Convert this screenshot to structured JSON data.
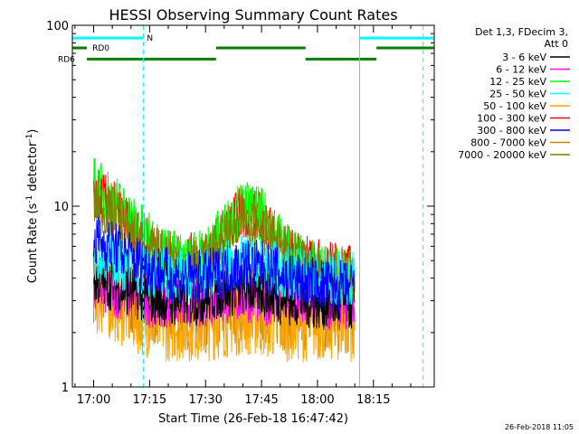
{
  "chart_data": {
    "type": "line",
    "title": "HESSI Observing Summary Count Rates",
    "xlabel": "Start Time (26-Feb-18 16:47:42)",
    "ylabel": "Count Rate (s⁻¹ detector⁻¹)",
    "y_scale": "log",
    "ylim": [
      1,
      100
    ],
    "xlim_minutes": [
      -5.7,
      91.3
    ],
    "x_ticks": [
      "17:00",
      "17:15",
      "17:30",
      "17:45",
      "18:00",
      "18:15"
    ],
    "y_ticks": [
      "1",
      "10",
      "100"
    ],
    "grid": false,
    "legend_placement": "right",
    "legend_header": [
      "Det 1,3, FDecim 3,",
      "Att 0"
    ],
    "footer_timestamp": "26-Feb-2018 11:05",
    "series": [
      {
        "name": "3 - 6 keV",
        "color": "#000000",
        "x": [
          0,
          5,
          10,
          15,
          20,
          25,
          30,
          35,
          40,
          45,
          50,
          55,
          60,
          65,
          70
        ],
        "values": [
          4.0,
          3.7,
          3.4,
          3.1,
          3.0,
          3.0,
          3.1,
          3.4,
          3.5,
          3.4,
          3.1,
          3.0,
          2.9,
          2.9,
          2.9
        ]
      },
      {
        "name": "6 - 12 keV",
        "color": "#ff00ff",
        "x": [
          0,
          5,
          10,
          15,
          20,
          25,
          30,
          35,
          40,
          45,
          50,
          55,
          60,
          65,
          70
        ],
        "values": [
          3.6,
          3.4,
          3.2,
          3.0,
          3.0,
          3.0,
          3.0,
          3.1,
          3.2,
          3.1,
          3.0,
          3.0,
          2.9,
          2.9,
          2.9
        ]
      },
      {
        "name": "12 - 25 keV",
        "color": "#00ff00",
        "x": [
          0,
          5,
          10,
          15,
          20,
          25,
          30,
          35,
          40,
          45,
          50,
          55,
          60,
          65,
          70
        ],
        "values": [
          13.5,
          11.0,
          8.5,
          6.5,
          5.5,
          5.0,
          5.5,
          7.5,
          10.0,
          9.0,
          6.5,
          5.0,
          4.5,
          4.2,
          4.0
        ]
      },
      {
        "name": "25 - 50 keV",
        "color": "#00ffff",
        "x": [
          0,
          5,
          10,
          15,
          20,
          25,
          30,
          35,
          40,
          45,
          50,
          55,
          60,
          65,
          70
        ],
        "values": [
          5.5,
          5.0,
          4.6,
          4.3,
          4.2,
          4.1,
          4.2,
          4.6,
          5.0,
          4.8,
          4.4,
          4.2,
          4.1,
          4.0,
          4.0
        ]
      },
      {
        "name": "50 - 100 keV",
        "color": "#ffa500",
        "x": [
          0,
          5,
          10,
          15,
          20,
          25,
          30,
          35,
          40,
          45,
          50,
          55,
          60,
          65,
          70
        ],
        "values": [
          3.2,
          3.0,
          2.6,
          2.4,
          2.3,
          2.3,
          2.3,
          2.4,
          2.5,
          2.4,
          2.3,
          2.3,
          2.3,
          2.3,
          2.3
        ]
      },
      {
        "name": "100 - 300 keV",
        "color": "#ff0000",
        "x": [
          0,
          5,
          10,
          15,
          20,
          25,
          30,
          35,
          40,
          45,
          50,
          55,
          60,
          65,
          70
        ],
        "values": [
          12.0,
          10.0,
          7.5,
          6.0,
          5.2,
          5.0,
          5.3,
          7.0,
          9.5,
          8.5,
          6.2,
          5.0,
          4.7,
          4.5,
          4.3
        ]
      },
      {
        "name": "300 - 800 keV",
        "color": "#0000ff",
        "x": [
          0,
          5,
          10,
          15,
          20,
          25,
          30,
          35,
          40,
          45,
          50,
          55,
          60,
          65,
          70
        ],
        "values": [
          6.5,
          6.0,
          5.2,
          4.6,
          4.2,
          4.0,
          4.1,
          4.4,
          4.8,
          4.6,
          4.2,
          3.9,
          3.7,
          3.6,
          3.5
        ]
      },
      {
        "name": "800 - 7000 keV",
        "color": "#cd8500",
        "x": [
          0,
          5,
          10,
          15,
          20,
          25,
          30,
          35,
          40,
          45,
          50,
          55,
          60,
          65,
          70
        ],
        "values": [
          3.8,
          3.4,
          3.1,
          2.9,
          2.7,
          2.6,
          2.6,
          2.8,
          3.0,
          2.9,
          2.7,
          2.6,
          2.5,
          2.5,
          2.5
        ]
      },
      {
        "name": "7000 - 20000 keV",
        "color": "#808000",
        "x": [
          0,
          5,
          10,
          15,
          20,
          25,
          30,
          35,
          40,
          45,
          50,
          55,
          60,
          65,
          70
        ],
        "values": [
          10.5,
          9.0,
          7.0,
          5.8,
          5.0,
          4.8,
          5.0,
          6.5,
          8.5,
          7.8,
          5.8,
          4.8,
          4.5,
          4.3,
          4.1
        ]
      }
    ],
    "flags": [
      {
        "label": "N",
        "color": "#00ffff",
        "value": 85,
        "intervals": [
          [
            -5.7,
            13.3
          ],
          [
            71.3,
            91.3
          ]
        ]
      },
      {
        "label": "RD0",
        "color": "#008000",
        "value": 75,
        "intervals": [
          [
            -5.7,
            -1.8
          ],
          [
            32.8,
            56.8
          ],
          [
            75.8,
            91.3
          ]
        ]
      },
      {
        "label": "RD6",
        "color": "#008000",
        "value": 65,
        "intervals": [
          [
            -1.8,
            32.8
          ],
          [
            56.8,
            75.8
          ]
        ]
      }
    ],
    "markers": [
      {
        "color": "#00ffff",
        "x_minutes": 13.3,
        "style": "dashed"
      },
      {
        "color": "#00ffff",
        "x_minutes": 71.3,
        "style": "solid"
      },
      {
        "color": "#00ffff",
        "x_minutes": 88.3,
        "style": "dashed"
      }
    ]
  }
}
